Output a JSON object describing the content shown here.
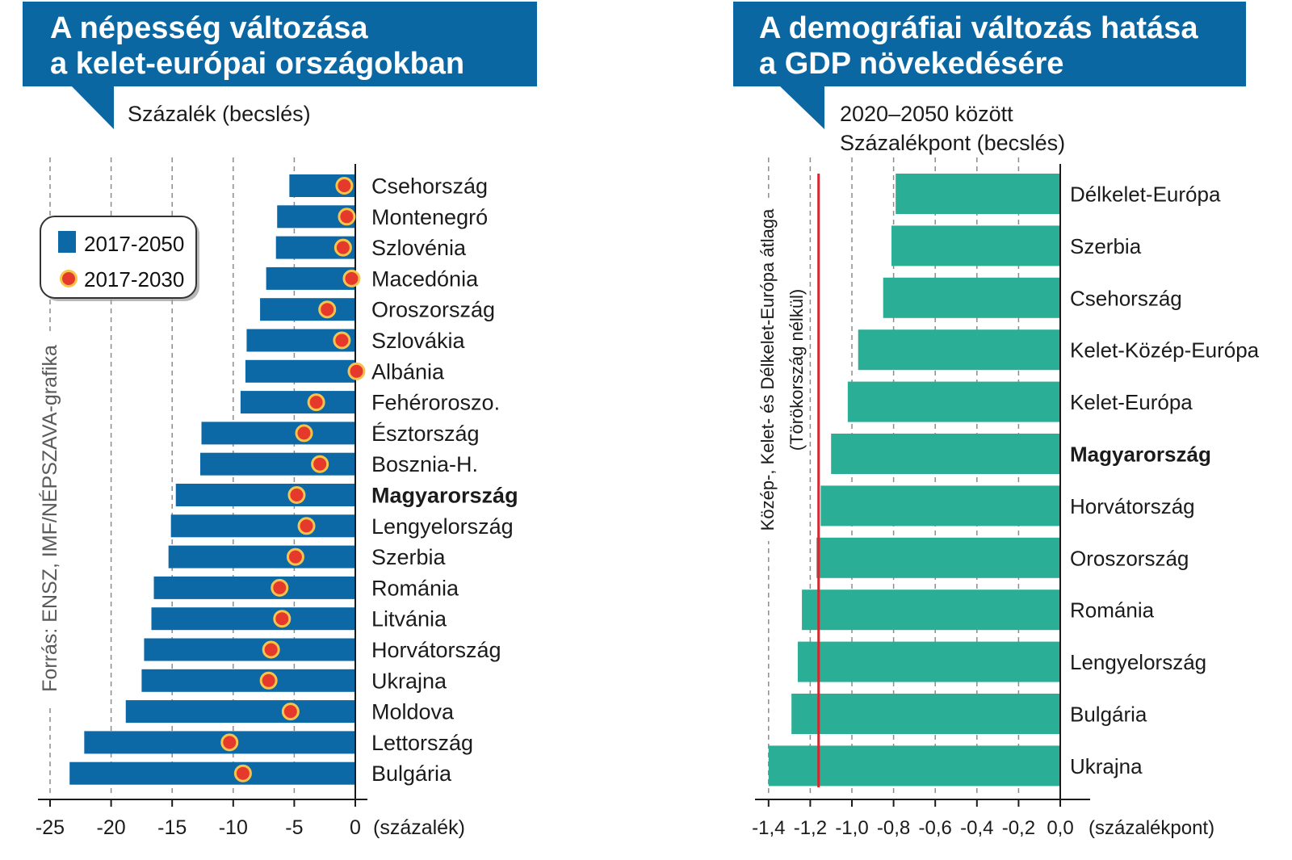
{
  "theme": {
    "title_box_color": "#0b67a2"
  },
  "chart_data": [
    {
      "type": "bar",
      "orientation": "horizontal",
      "title_lines": [
        "A népesség változása",
        "a kelet-európai országokban"
      ],
      "subtitle_lines": [
        "Százalék (becslés)"
      ],
      "xlabel": "(százalék)",
      "xlim": [
        -25,
        0
      ],
      "xticks": [
        -25,
        -20,
        -15,
        -10,
        -5,
        0
      ],
      "xtick_labels": [
        "-25",
        "-20",
        "-15",
        "-10",
        "-5",
        "0"
      ],
      "grid": true,
      "legend_position": "top-left",
      "categories": [
        "Csehország",
        "Montenegró",
        "Szlovénia",
        "Macedónia",
        "Oroszország",
        "Szlovákia",
        "Albánia",
        "Fehéroroszo.",
        "Észtország",
        "Bosznia-H.",
        "Magyarország",
        "Lengyelország",
        "Szerbia",
        "Románia",
        "Litvánia",
        "Horvátország",
        "Ukrajna",
        "Moldova",
        "Lettország",
        "Bulgária"
      ],
      "category_bold": [
        false,
        false,
        false,
        false,
        false,
        false,
        false,
        false,
        false,
        false,
        true,
        false,
        false,
        false,
        false,
        false,
        false,
        false,
        false,
        false
      ],
      "series": [
        {
          "name": "2017-2050",
          "mark": "bar",
          "color": "#0d68a6",
          "values": [
            -5.4,
            -6.4,
            -6.5,
            -7.3,
            -7.8,
            -8.9,
            -9.0,
            -9.4,
            -12.6,
            -12.7,
            -14.7,
            -15.1,
            -15.3,
            -16.5,
            -16.7,
            -17.3,
            -17.5,
            -18.8,
            -22.2,
            -23.4
          ]
        },
        {
          "name": "2017-2030",
          "mark": "dot",
          "color": "#e4392b",
          "outline": "#f7c34b",
          "values": [
            -0.9,
            -0.7,
            -1.0,
            -0.3,
            -2.3,
            -1.1,
            0.1,
            -3.2,
            -4.2,
            -2.9,
            -4.8,
            -4.0,
            -4.9,
            -6.2,
            -6.0,
            -6.9,
            -7.1,
            -5.3,
            -10.3,
            -9.2
          ]
        }
      ],
      "source": "Forrás: ENSZ, IMF/NÉPSZAVA-grafika"
    },
    {
      "type": "bar",
      "orientation": "horizontal",
      "title_lines": [
        "A demográfiai változás hatása",
        "a GDP növekedésére"
      ],
      "subtitle_lines": [
        "2020–2050 között",
        "Százalékpont (becslés)"
      ],
      "xlabel": "(százalékpont)",
      "xlim": [
        -1.4,
        0
      ],
      "xticks": [
        -1.4,
        -1.2,
        -1.0,
        -0.8,
        -0.6,
        -0.4,
        -0.2,
        0.0
      ],
      "xtick_labels": [
        "-1,4",
        "-1,2",
        "-1,0",
        "-0,8",
        "-0,6",
        "-0,4",
        "-0,2",
        "0,0"
      ],
      "grid": true,
      "categories": [
        "Délkelet-Európa",
        "Szerbia",
        "Csehország",
        "Kelet-Közép-Európa",
        "Kelet-Európa",
        "Magyarország",
        "Horvátország",
        "Oroszország",
        "Románia",
        "Lengyelország",
        "Bulgária",
        "Ukrajna"
      ],
      "category_bold": [
        false,
        false,
        false,
        false,
        false,
        true,
        false,
        false,
        false,
        false,
        false,
        false
      ],
      "series": [
        {
          "mark": "bar",
          "color": "#2aae96",
          "values": [
            -0.79,
            -0.81,
            -0.85,
            -0.97,
            -1.02,
            -1.1,
            -1.15,
            -1.17,
            -1.24,
            -1.26,
            -1.29,
            -1.4
          ]
        }
      ],
      "reference_line": {
        "value": -1.16,
        "color": "#d7262e",
        "label_lines": [
          "Közép-, Kelet- és Délkelet-Európa átlaga",
          "(Törökország nélkül)"
        ]
      }
    }
  ]
}
